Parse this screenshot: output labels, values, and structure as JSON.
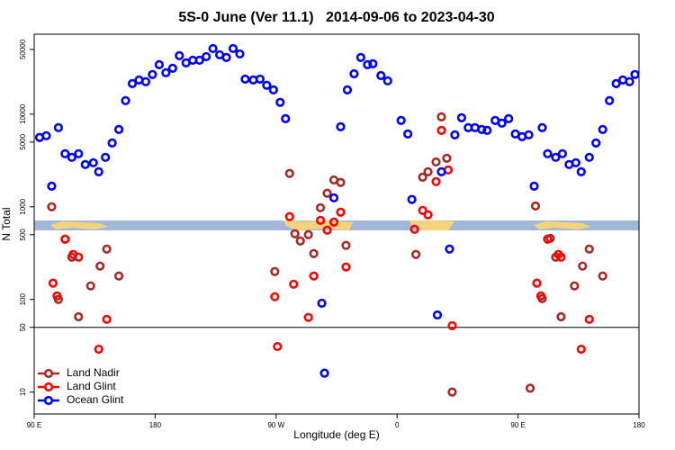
{
  "chart_data": {
    "type": "scatter",
    "title": "5S-0 June (Ver 11.1)   2014-09-06 to 2023-04-30",
    "x_label": "Longitude (deg E)",
    "y_label": "N Total",
    "log_y": true,
    "legend": "lower left",
    "xlim": [
      90,
      540
    ],
    "ylim": [
      5.8,
      73000
    ],
    "xticks": [
      {
        "value": 90,
        "label": "90 E"
      },
      180,
      {
        "value": 270,
        "label": "90 W"
      },
      {
        "value": 360,
        "label": "0"
      },
      {
        "value": 450,
        "label": "90 E"
      },
      {
        "value": 540,
        "label": "180"
      }
    ],
    "yticks": [
      10,
      50,
      100,
      500,
      1000,
      5000,
      10000,
      50000
    ],
    "hline": 50,
    "series": [
      {
        "name": "Land Nadir",
        "color": "#a52a2a",
        "x": [
          103,
          108,
          113,
          118,
          123,
          132,
          139,
          144,
          153,
          269,
          280,
          284,
          288,
          294,
          298,
          303,
          308,
          313,
          318,
          322,
          374,
          379,
          383,
          389,
          393,
          397,
          401,
          459,
          463,
          468,
          474,
          478,
          482,
          492,
          498,
          503,
          513
        ],
        "values": [
          1000,
          100,
          447,
          286,
          65,
          140,
          229,
          350,
          179,
          200,
          2290,
          512,
          428,
          500,
          313,
          977,
          1400,
          1950,
          1830,
          383,
          306,
          2090,
          2390,
          3050,
          9350,
          3340,
          10,
          11,
          1020,
          102,
          457,
          286,
          65,
          140,
          229,
          350,
          179
        ]
      },
      {
        "name": "Land Glint",
        "color": "#ff0000",
        "x": [
          104,
          107,
          113,
          119,
          123,
          138,
          144,
          269,
          271,
          280,
          283,
          294,
          298,
          303,
          308,
          313,
          318,
          322,
          373,
          379,
          383,
          389,
          393,
          398,
          401,
          464,
          467,
          472,
          480,
          482,
          497,
          503
        ],
        "values": [
          150,
          109,
          447,
          306,
          286,
          29,
          61,
          107,
          31,
          782,
          146,
          64,
          179,
          714,
          560,
          684,
          875,
          224,
          572,
          914,
          818,
          1870,
          6680,
          2500,
          52,
          150,
          109,
          447,
          306,
          286,
          29,
          61
        ]
      },
      {
        "name": "Ocean Glint",
        "color": "#0000ff",
        "x": [
          94,
          99,
          103,
          108,
          113,
          118,
          123,
          128,
          134,
          138,
          143,
          148,
          153,
          158,
          163,
          168,
          173,
          178,
          183,
          188,
          193,
          198,
          203,
          208,
          213,
          218,
          223,
          228,
          233,
          238,
          243,
          247,
          253,
          258,
          263,
          268,
          273,
          277,
          304,
          306,
          313,
          318,
          323,
          328,
          333,
          338,
          342,
          348,
          353,
          363,
          368,
          371,
          390,
          393,
          399,
          403,
          408,
          413,
          418,
          423,
          427,
          433,
          438,
          443,
          448,
          453,
          458,
          462,
          468,
          472,
          478,
          483,
          488,
          493,
          497,
          503,
          508,
          513,
          518,
          523,
          528,
          533,
          537
        ],
        "values": [
          5600,
          5850,
          1670,
          7150,
          3740,
          3420,
          3740,
          2860,
          2990,
          2390,
          3420,
          4890,
          6840,
          14000,
          21400,
          23400,
          22400,
          26800,
          34200,
          28000,
          31300,
          42800,
          35800,
          38200,
          38200,
          41800,
          51100,
          43700,
          40900,
          51100,
          44700,
          23900,
          23400,
          23900,
          20500,
          18300,
          13400,
          8940,
          91,
          16,
          1250,
          7310,
          18300,
          27300,
          40900,
          34200,
          35000,
          26100,
          22900,
          8550,
          6110,
          1200,
          68,
          2390,
          350,
          5980,
          9140,
          7150,
          7150,
          6840,
          6680,
          8550,
          8000,
          8940,
          6110,
          5710,
          5980,
          1670,
          7150,
          3740,
          3420,
          3740,
          2860,
          2990,
          2390,
          3420,
          4890,
          6840,
          14000,
          21400,
          23400,
          22400,
          26800
        ]
      }
    ]
  }
}
